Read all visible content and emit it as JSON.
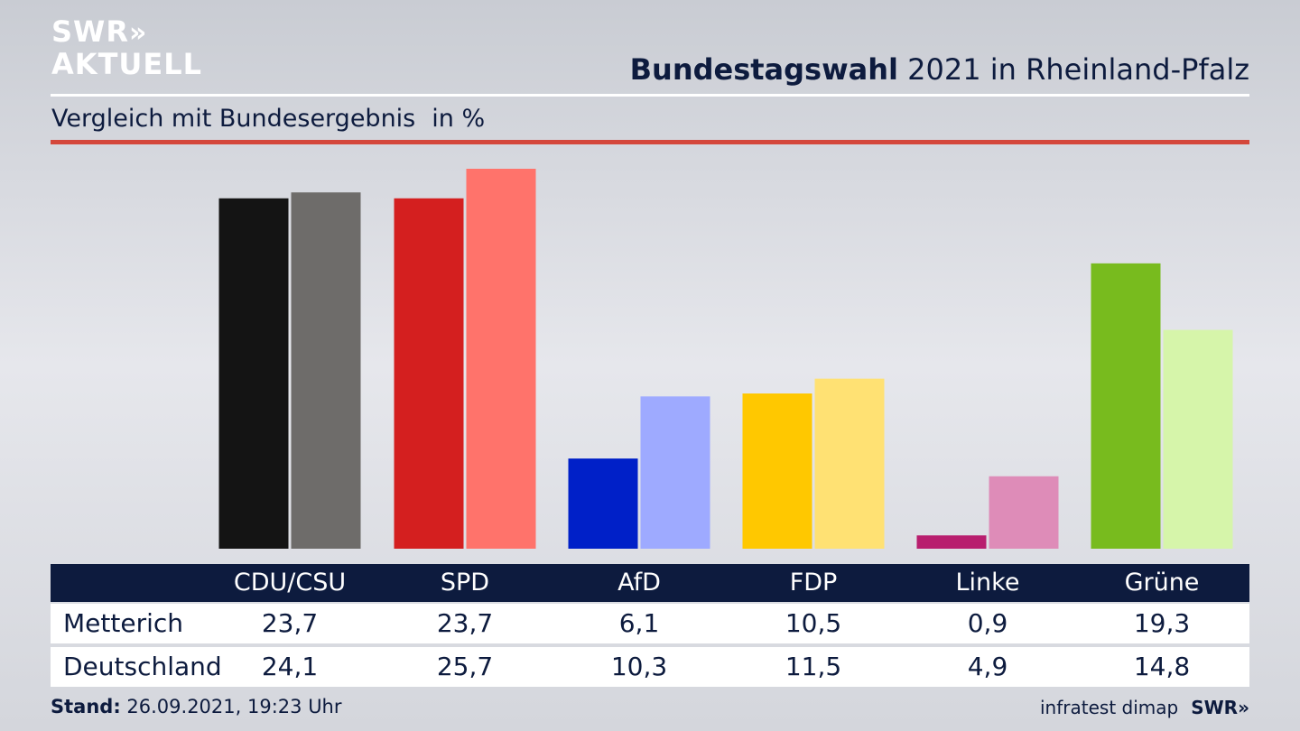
{
  "logo": {
    "line1": "SWR",
    "arrows": "»",
    "line2": "AKTUELL"
  },
  "header": {
    "title_bold": "Bundestagswahl",
    "title_rest": "2021 in Rheinland-Pfalz"
  },
  "subheader": {
    "text": "Vergleich mit Bundesergebnis",
    "unit": "in %"
  },
  "table": {
    "columns": [
      "CDU/CSU",
      "SPD",
      "AfD",
      "FDP",
      "Linke",
      "Grüne"
    ],
    "rows": [
      {
        "label": "Metterich",
        "values": [
          "23,7",
          "23,7",
          "6,1",
          "10,5",
          "0,9",
          "19,3"
        ]
      },
      {
        "label": "Deutschland",
        "values": [
          "24,1",
          "25,7",
          "10,3",
          "11,5",
          "4,9",
          "14,8"
        ]
      }
    ]
  },
  "footer": {
    "stand_label": "Stand:",
    "stand_value": "26.09.2021, 19:23 Uhr",
    "source": "infratest dimap",
    "brand": "SWR»"
  },
  "chart_data": {
    "type": "bar",
    "categories": [
      "CDU/CSU",
      "SPD",
      "AfD",
      "FDP",
      "Linke",
      "Grüne"
    ],
    "series": [
      {
        "name": "Metterich",
        "values": [
          23.7,
          23.7,
          6.1,
          10.5,
          0.9,
          19.3
        ],
        "colors": [
          "#141414",
          "#d41f1f",
          "#0020c8",
          "#ffc800",
          "#b81e6e",
          "#78bb1e"
        ]
      },
      {
        "name": "Deutschland",
        "values": [
          24.1,
          25.7,
          10.3,
          11.5,
          4.9,
          14.8
        ],
        "colors": [
          "#6e6c6a",
          "#ff736b",
          "#9eaaff",
          "#ffe173",
          "#de8cb8",
          "#d6f5aa"
        ]
      }
    ],
    "ylim": [
      0,
      25.7
    ],
    "grid": false
  }
}
